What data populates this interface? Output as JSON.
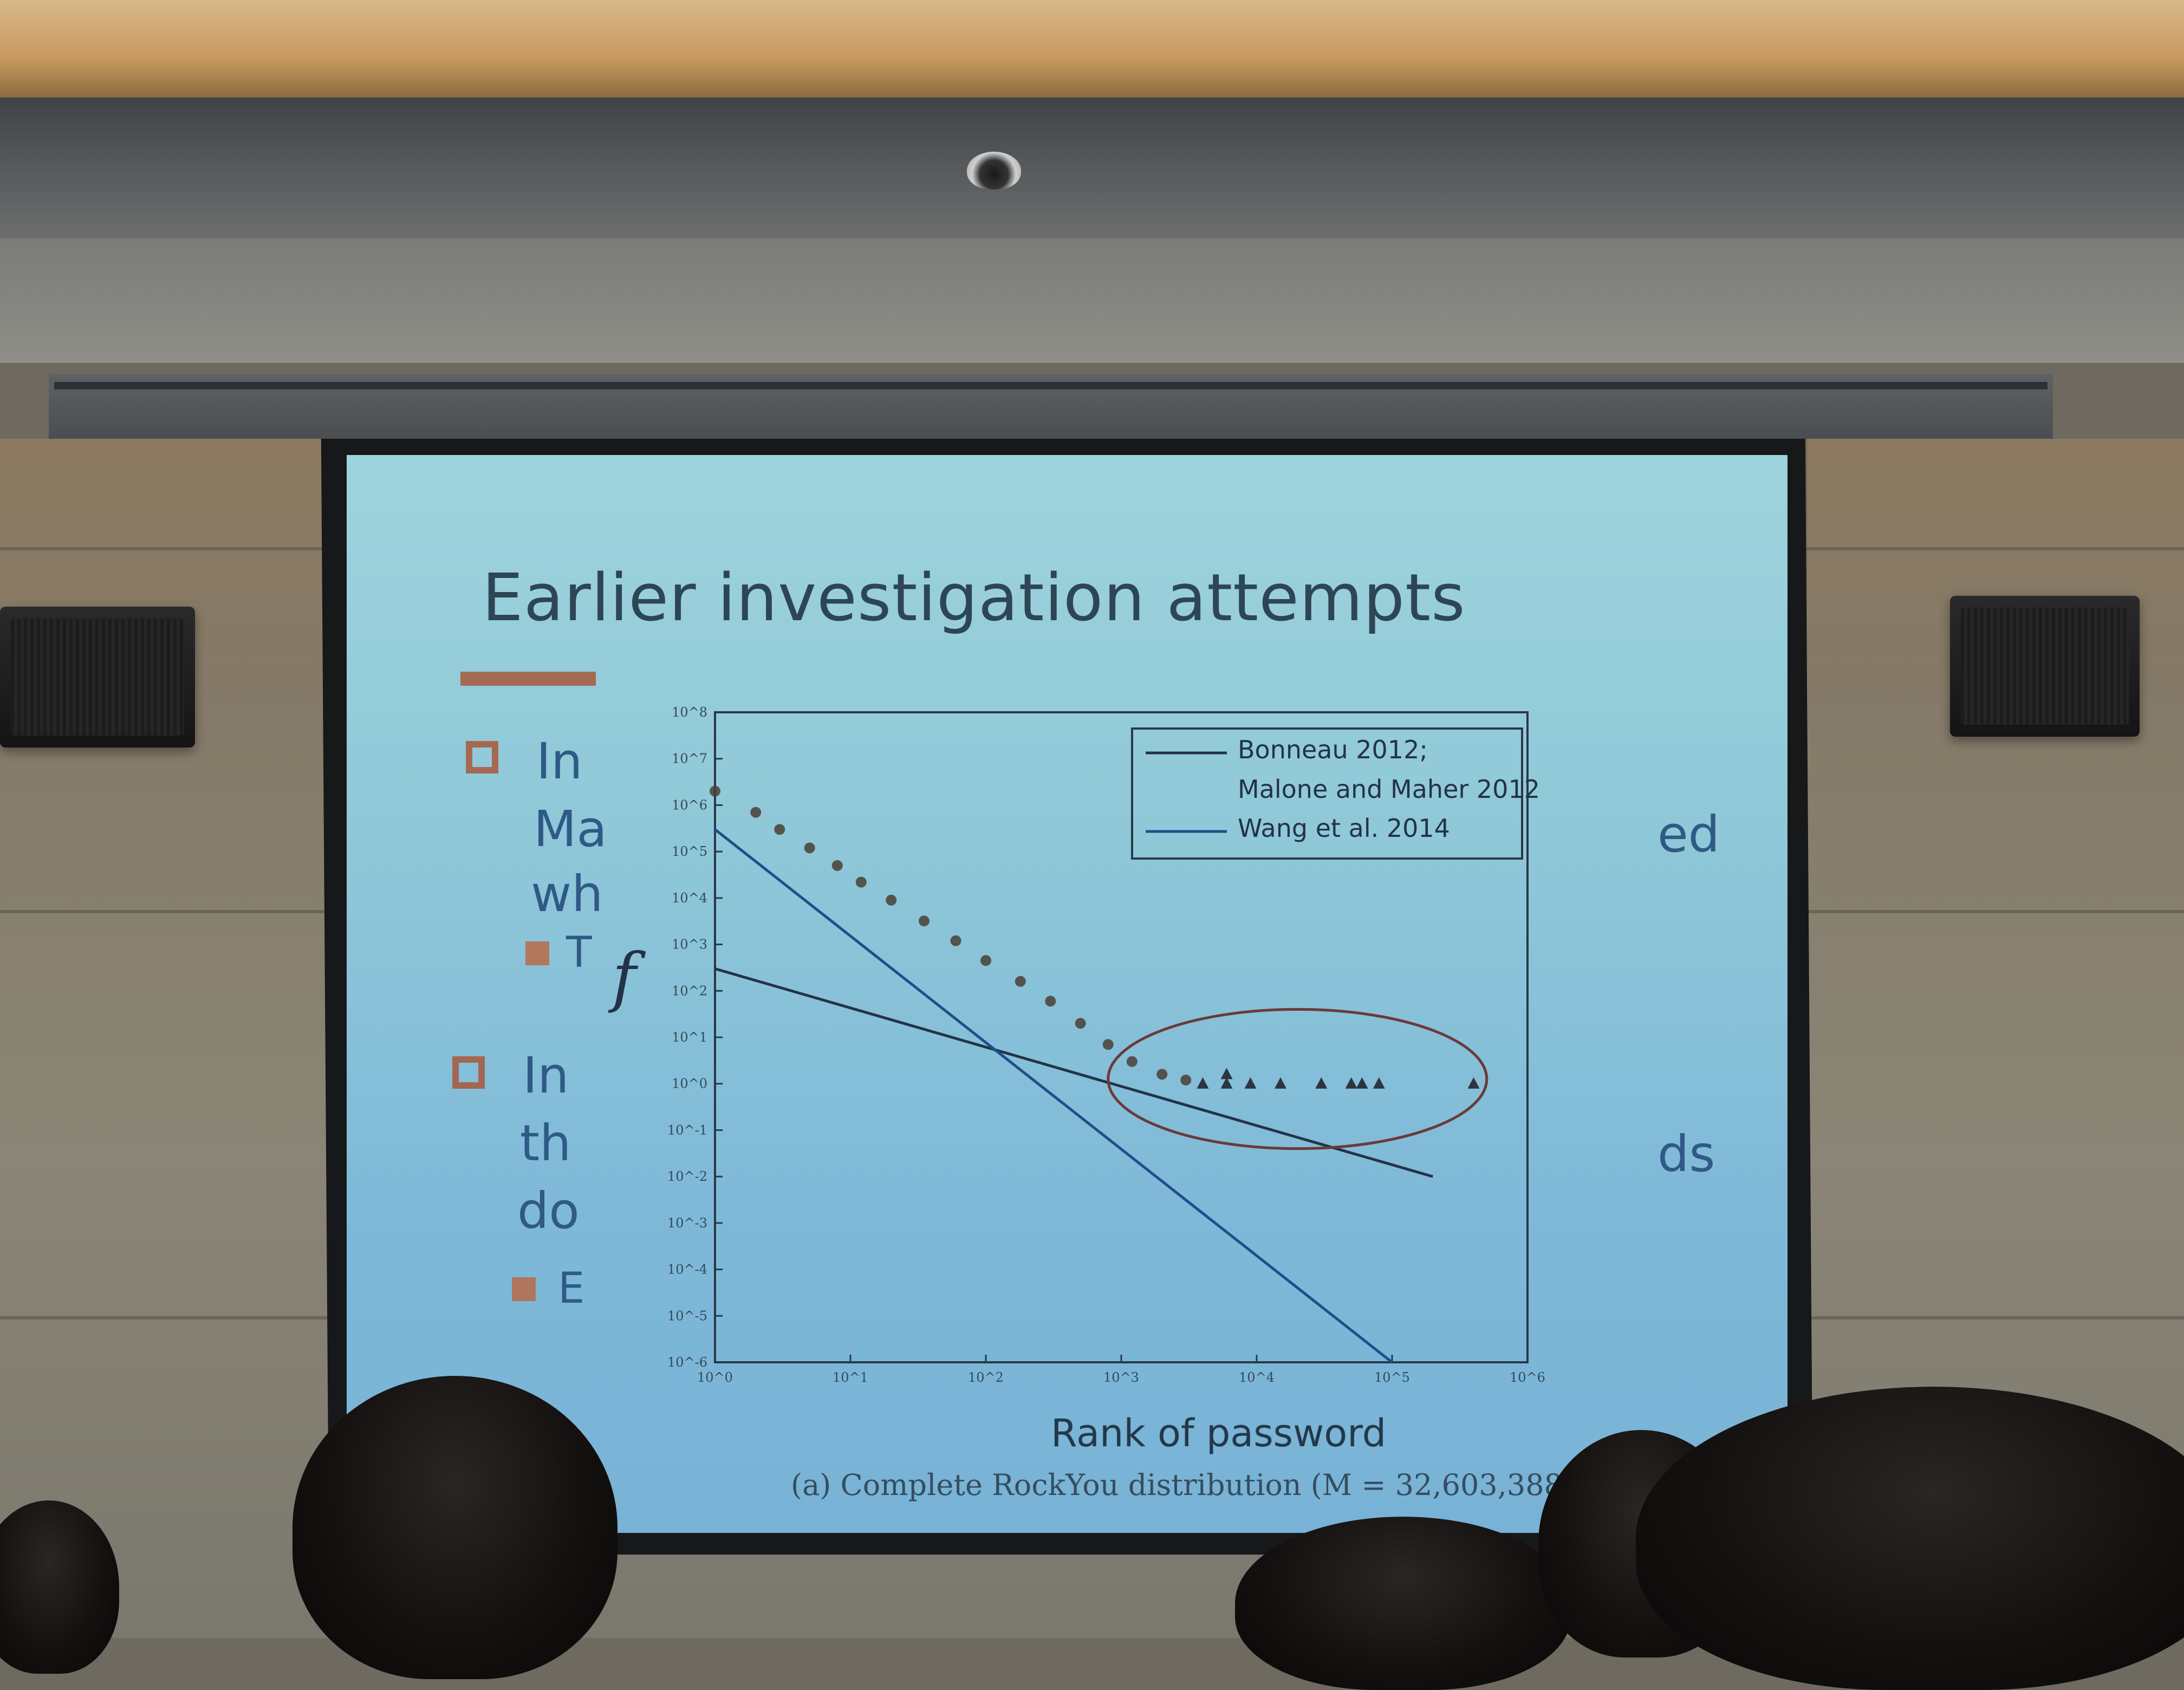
{
  "slide": {
    "title": "Earlier investigation attempts",
    "bullets": [
      {
        "lines": [
          "In",
          "Ma",
          "wh"
        ],
        "right_fragment": "ed",
        "sub": "T"
      },
      {
        "lines": [
          "In",
          "th",
          "do"
        ],
        "right_fragment": "ds",
        "sub": "E"
      }
    ],
    "f_symbol": "f"
  },
  "chart_data": {
    "type": "scatter",
    "xscale": "log",
    "yscale": "log",
    "xlim": [
      1,
      1000000
    ],
    "ylim": [
      1e-06,
      100000000
    ],
    "xlabel": "Rank of password",
    "ylabel": "",
    "x_ticks": [
      "10^0",
      "10^1",
      "10^2",
      "10^3",
      "10^4",
      "10^5",
      "10^6"
    ],
    "y_ticks": [
      "10^-6",
      "10^-5",
      "10^-4",
      "10^-3",
      "10^-2",
      "10^-1",
      "10^0",
      "10^1",
      "10^2",
      "10^3",
      "10^4",
      "10^5",
      "10^6",
      "10^7",
      "10^8"
    ],
    "legend": {
      "placement": "top-right",
      "entries": [
        "Bonneau 2012;",
        "Malone and Maher 2012",
        "Wang et al. 2014"
      ]
    },
    "series": [
      {
        "name": "Bonneau 2012; Malone and Maher 2012",
        "kind": "line",
        "points": [
          [
            1,
            300
          ],
          [
            200000,
            0.01
          ]
        ]
      },
      {
        "name": "Wang et al. 2014",
        "kind": "line",
        "points": [
          [
            1,
            300000
          ],
          [
            100000,
            1e-06
          ]
        ]
      },
      {
        "kind": "scatter",
        "marker": "circle",
        "points": [
          [
            1,
            2000000
          ],
          [
            2,
            700000
          ],
          [
            3,
            300000
          ],
          [
            5,
            120000
          ],
          [
            8,
            50000
          ],
          [
            12,
            22000
          ],
          [
            20,
            9000
          ],
          [
            35,
            3200
          ],
          [
            60,
            1200
          ],
          [
            100,
            450
          ],
          [
            180,
            160
          ],
          [
            300,
            60
          ],
          [
            500,
            20
          ],
          [
            800,
            7
          ],
          [
            1200,
            3
          ],
          [
            2000,
            1.6
          ],
          [
            3000,
            1.2
          ]
        ]
      },
      {
        "kind": "scatter",
        "marker": "triangle",
        "points": [
          [
            4000,
            1
          ],
          [
            6000,
            1
          ],
          [
            9000,
            1
          ],
          [
            15000,
            1
          ],
          [
            30000,
            1
          ],
          [
            50000,
            1
          ],
          [
            60000,
            1
          ],
          [
            80000,
            1
          ],
          [
            400000,
            1
          ],
          [
            6000,
            1.6
          ]
        ]
      }
    ],
    "annotation": {
      "kind": "ellipse",
      "around": "tail points near y = 10^0"
    },
    "caption": "(a) Complete RockYou distribution (M = 32,603,388)"
  }
}
